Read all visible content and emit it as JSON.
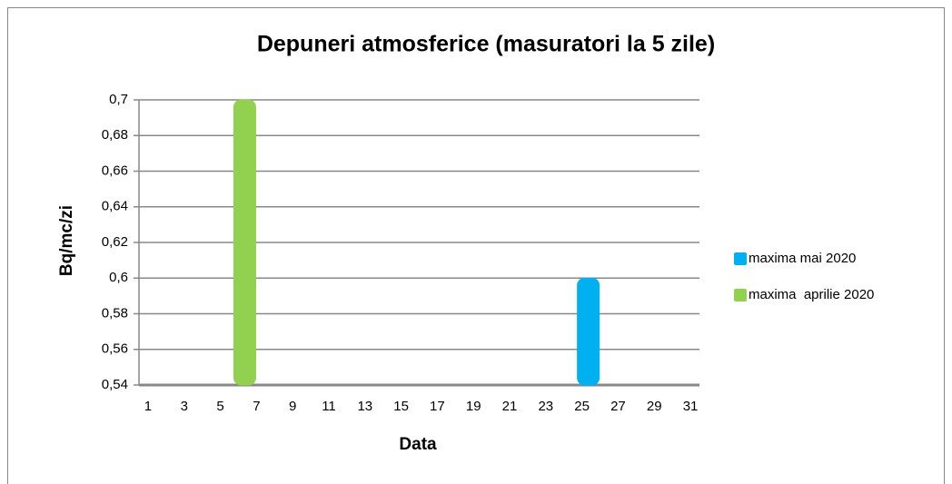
{
  "chart_data": {
    "type": "bar",
    "title": "Depuneri atmosferice (masuratori la 5 zile)",
    "x_label": "Data",
    "y_label": "Bq/mc/zi",
    "categories": [
      "1",
      null,
      "3",
      null,
      "5",
      null,
      "7",
      null,
      "9",
      null,
      "11",
      null,
      "13",
      null,
      "15",
      null,
      "17",
      null,
      "19",
      null,
      "21",
      null,
      "23",
      null,
      "25",
      null,
      "27",
      null,
      "29",
      null,
      "31"
    ],
    "series": [
      {
        "name": "maxima mai 2020",
        "color": "#00b0f0",
        "values": [
          null,
          null,
          null,
          null,
          null,
          null,
          null,
          null,
          null,
          null,
          null,
          null,
          null,
          null,
          null,
          null,
          null,
          null,
          null,
          null,
          null,
          null,
          null,
          null,
          0.6,
          null,
          null,
          null,
          null,
          null,
          null
        ]
      },
      {
        "name": "maxima  aprilie 2020",
        "color": "#92d050",
        "values": [
          null,
          null,
          null,
          null,
          null,
          0.7,
          null,
          null,
          null,
          null,
          null,
          null,
          null,
          null,
          null,
          null,
          null,
          null,
          null,
          null,
          null,
          null,
          null,
          null,
          null,
          null,
          null,
          null,
          null,
          null,
          null
        ]
      }
    ],
    "ylim": [
      0.54,
      0.7
    ],
    "yticks": [
      {
        "value": 0.54,
        "label": "0,54"
      },
      {
        "value": 0.56,
        "label": "0,56"
      },
      {
        "value": 0.58,
        "label": "0,58"
      },
      {
        "value": 0.6,
        "label": "0,6"
      },
      {
        "value": 0.62,
        "label": "0,62"
      },
      {
        "value": 0.64,
        "label": "0,64"
      },
      {
        "value": 0.66,
        "label": "0,66"
      },
      {
        "value": 0.68,
        "label": "0,68"
      },
      {
        "value": 0.7,
        "label": "0,7"
      }
    ],
    "grid": true,
    "legend": "right"
  }
}
